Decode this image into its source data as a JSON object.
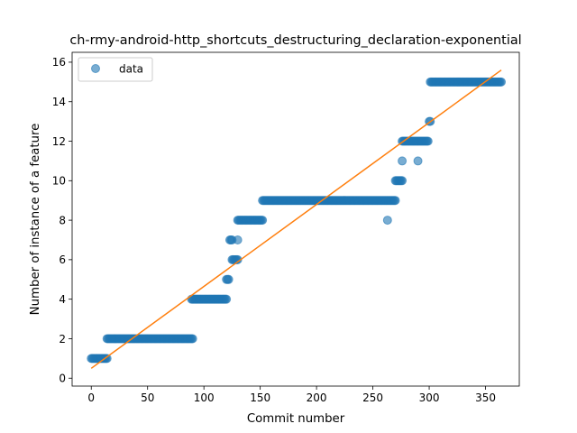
{
  "chart_data": {
    "type": "scatter",
    "title": "ch-rmy-android-http_shortcuts_destructuring_declaration-exponential",
    "xlabel": "Commit number",
    "ylabel": "Number of instance of a feature",
    "xlim": [
      -17,
      380
    ],
    "ylim": [
      -0.4,
      16.5
    ],
    "xticks": [
      0,
      50,
      100,
      150,
      200,
      250,
      300,
      350
    ],
    "yticks": [
      0,
      2,
      4,
      6,
      8,
      10,
      12,
      14,
      16
    ],
    "grid": false,
    "legend": {
      "placement": "top-left",
      "entries": [
        "data"
      ]
    },
    "colors": {
      "data": "#1f77b4",
      "fit": "#ff7f0e"
    },
    "series": [
      {
        "name": "data",
        "style": "markers",
        "segments": [
          {
            "x_start": 0,
            "x_end": 14,
            "y": 1
          },
          {
            "x_start": 14,
            "x_end": 90,
            "y": 2
          },
          {
            "x_start": 89,
            "x_end": 120,
            "y": 4
          },
          {
            "x_start": 120,
            "x_end": 122,
            "y": 5
          },
          {
            "x_start": 123,
            "x_end": 125,
            "y": 7
          },
          {
            "x_start": 125,
            "x_end": 130,
            "y": 6
          },
          {
            "x_start": 130,
            "x_end": 152,
            "y": 8
          },
          {
            "x_start": 152,
            "x_end": 270,
            "y": 9
          },
          {
            "x_start": 270,
            "x_end": 276,
            "y": 10
          },
          {
            "x_start": 276,
            "x_end": 299,
            "y": 12
          },
          {
            "x_start": 300,
            "x_end": 301,
            "y": 13
          },
          {
            "x_start": 301,
            "x_end": 364,
            "y": 15
          }
        ],
        "points": [
          {
            "x": 130,
            "y": 7
          },
          {
            "x": 263,
            "y": 8
          },
          {
            "x": 276,
            "y": 11
          },
          {
            "x": 290,
            "y": 11
          }
        ]
      },
      {
        "name": "",
        "style": "line",
        "x": [
          0,
          364
        ],
        "y": [
          0.5,
          15.6
        ]
      }
    ]
  }
}
